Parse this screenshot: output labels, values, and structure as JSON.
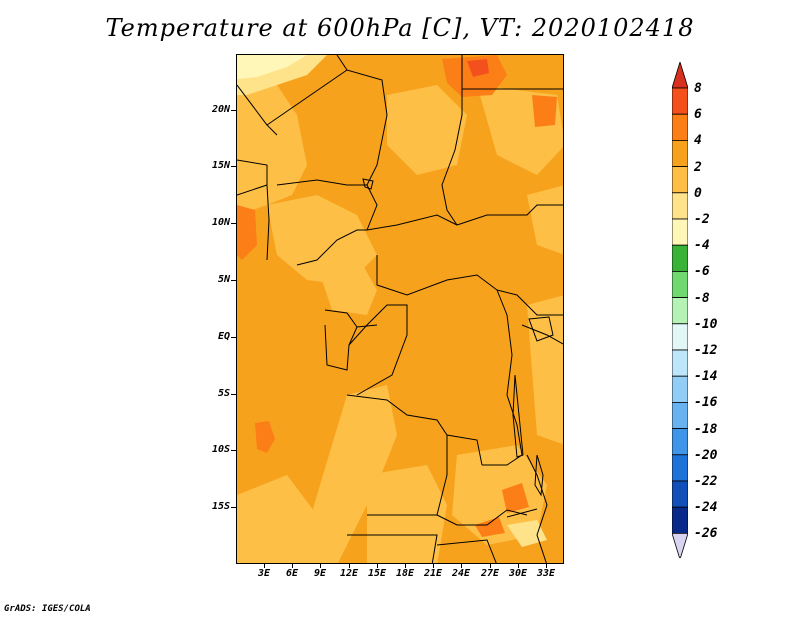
{
  "title": "Temperature at 600hPa [C], VT: 2020102418",
  "credit": "GrADS: IGES/COLA",
  "latitude_labels": [
    "20N",
    "15N",
    "10N",
    "5N",
    "EQ",
    "5S",
    "10S",
    "15S"
  ],
  "longitude_labels": [
    "3E",
    "6E",
    "9E",
    "12E",
    "15E",
    "18E",
    "21E",
    "24E",
    "27E",
    "30E",
    "33E"
  ],
  "colorbar": {
    "labels": [
      "8",
      "6",
      "4",
      "2",
      "0",
      "-2",
      "-4",
      "-6",
      "-8",
      "-10",
      "-12",
      "-14",
      "-16",
      "-18",
      "-20",
      "-22",
      "-24",
      "-26"
    ],
    "colors": [
      "#d7301f",
      "#f4501e",
      "#fc7e16",
      "#f7a21d",
      "#fdbf46",
      "#fee38a",
      "#fff7b8",
      "#38b338",
      "#6fd86f",
      "#b5f2b5",
      "#e4f7f7",
      "#bee6fb",
      "#91cdf5",
      "#68b2ef",
      "#3f95e8",
      "#1e73d9",
      "#1050b8",
      "#0a2a8a",
      "#0b0b5e"
    ],
    "under_color": "#d8d4f2",
    "over_color": "#d7301f"
  },
  "map_colors": {
    "base": "#f7a21d",
    "light": "#fdbf46",
    "lighter": "#fee38a",
    "lightest": "#fff7b8",
    "warm": "#fc7e16",
    "hot": "#f4501e"
  }
}
